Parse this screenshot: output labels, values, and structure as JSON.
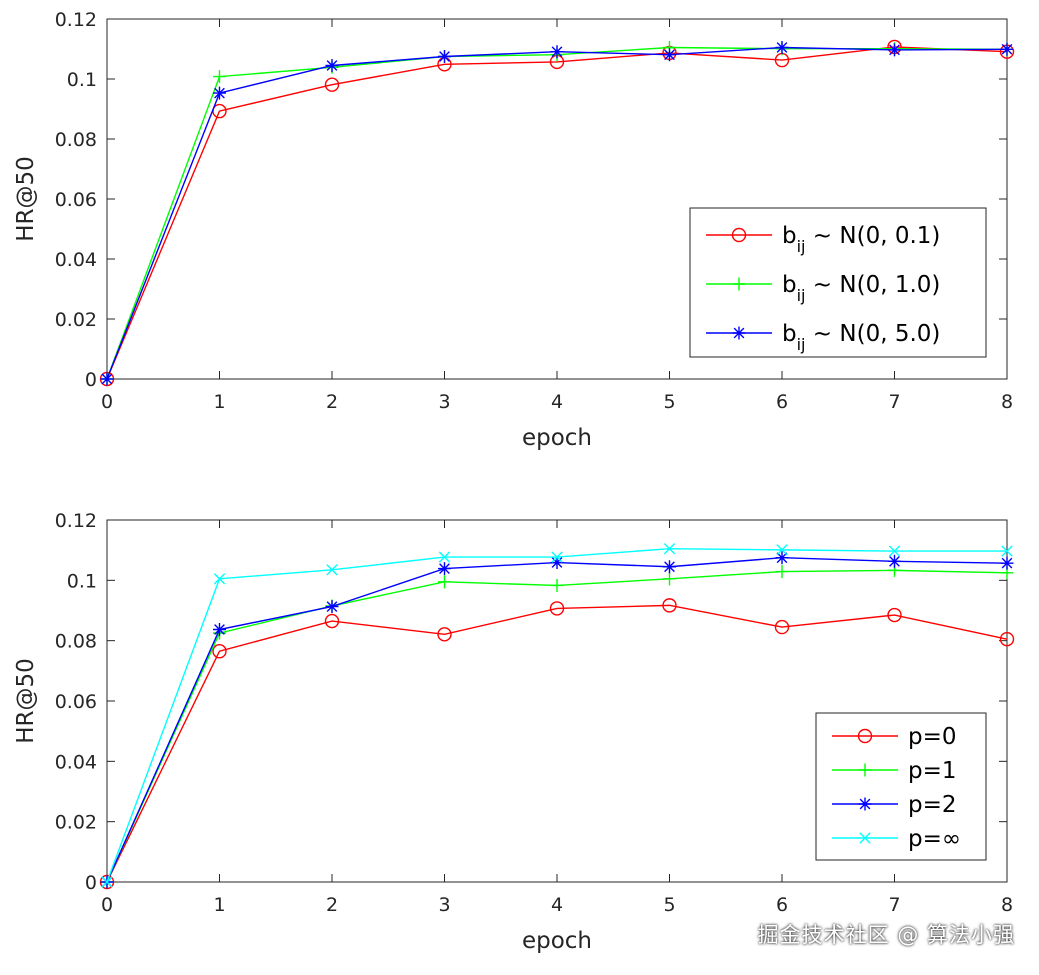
{
  "watermark": "掘金技术社区 @ 算法小强",
  "chart_data": [
    {
      "type": "line",
      "xlabel": "epoch",
      "ylabel": "HR@50",
      "xlim": [
        0,
        8
      ],
      "ylim": [
        0,
        0.12
      ],
      "x": [
        0,
        1,
        2,
        3,
        4,
        5,
        6,
        7,
        8
      ],
      "x_ticks": [
        "0",
        "1",
        "2",
        "3",
        "4",
        "5",
        "6",
        "7",
        "8"
      ],
      "y_ticks": [
        "0",
        "0.02",
        "0.04",
        "0.06",
        "0.08",
        "0.1",
        "0.12"
      ],
      "y_tick_values": [
        0,
        0.02,
        0.04,
        0.06,
        0.08,
        0.1,
        0.12
      ],
      "grid": false,
      "legend_position": "lower-right",
      "series": [
        {
          "name": "b",
          "name_sub": "ij",
          "name_suffix": " ~ N(0, 0.1)",
          "color": "#ff0000",
          "marker": "circle",
          "values": [
            0,
            0.0893,
            0.0981,
            0.1049,
            0.1057,
            0.1087,
            0.1063,
            0.1107,
            0.1091
          ]
        },
        {
          "name": "b",
          "name_sub": "ij",
          "name_suffix": " ~ N(0, 1.0)",
          "color": "#00ff00",
          "marker": "plus",
          "values": [
            0,
            0.1008,
            0.1039,
            0.1075,
            0.1081,
            0.1105,
            0.1101,
            0.1101,
            0.1099
          ]
        },
        {
          "name": "b",
          "name_sub": "ij",
          "name_suffix": " ~ N(0, 5.0)",
          "color": "#0000ff",
          "marker": "asterisk",
          "values": [
            0,
            0.0953,
            0.1045,
            0.1075,
            0.1091,
            0.1081,
            0.1105,
            0.1097,
            0.1099
          ]
        }
      ]
    },
    {
      "type": "line",
      "xlabel": "epoch",
      "ylabel": "HR@50",
      "xlim": [
        0,
        8
      ],
      "ylim": [
        0,
        0.12
      ],
      "x": [
        0,
        1,
        2,
        3,
        4,
        5,
        6,
        7,
        8
      ],
      "x_ticks": [
        "0",
        "1",
        "2",
        "3",
        "4",
        "5",
        "6",
        "7",
        "8"
      ],
      "y_ticks": [
        "0",
        "0.02",
        "0.04",
        "0.06",
        "0.08",
        "0.1",
        "0.12"
      ],
      "y_tick_values": [
        0,
        0.02,
        0.04,
        0.06,
        0.08,
        0.1,
        0.12
      ],
      "grid": false,
      "legend_position": "lower-right",
      "series": [
        {
          "name": "p=0",
          "color": "#ff0000",
          "marker": "circle",
          "values": [
            0,
            0.0765,
            0.0865,
            0.0821,
            0.0907,
            0.0917,
            0.0845,
            0.0885,
            0.0805
          ]
        },
        {
          "name": "p=1",
          "color": "#00ff00",
          "marker": "plus",
          "values": [
            0,
            0.0825,
            0.0915,
            0.0995,
            0.0983,
            0.1005,
            0.1029,
            0.1033,
            0.1025
          ]
        },
        {
          "name": "p=2",
          "color": "#0000ff",
          "marker": "asterisk",
          "values": [
            0,
            0.0837,
            0.0913,
            0.1039,
            0.1059,
            0.1045,
            0.1075,
            0.1063,
            0.1057
          ]
        },
        {
          "name": "p=∞",
          "color": "#00ffff",
          "marker": "cross",
          "values": [
            0,
            0.1005,
            0.1035,
            0.1077,
            0.1077,
            0.1105,
            0.1101,
            0.1097,
            0.1097
          ]
        }
      ]
    }
  ]
}
